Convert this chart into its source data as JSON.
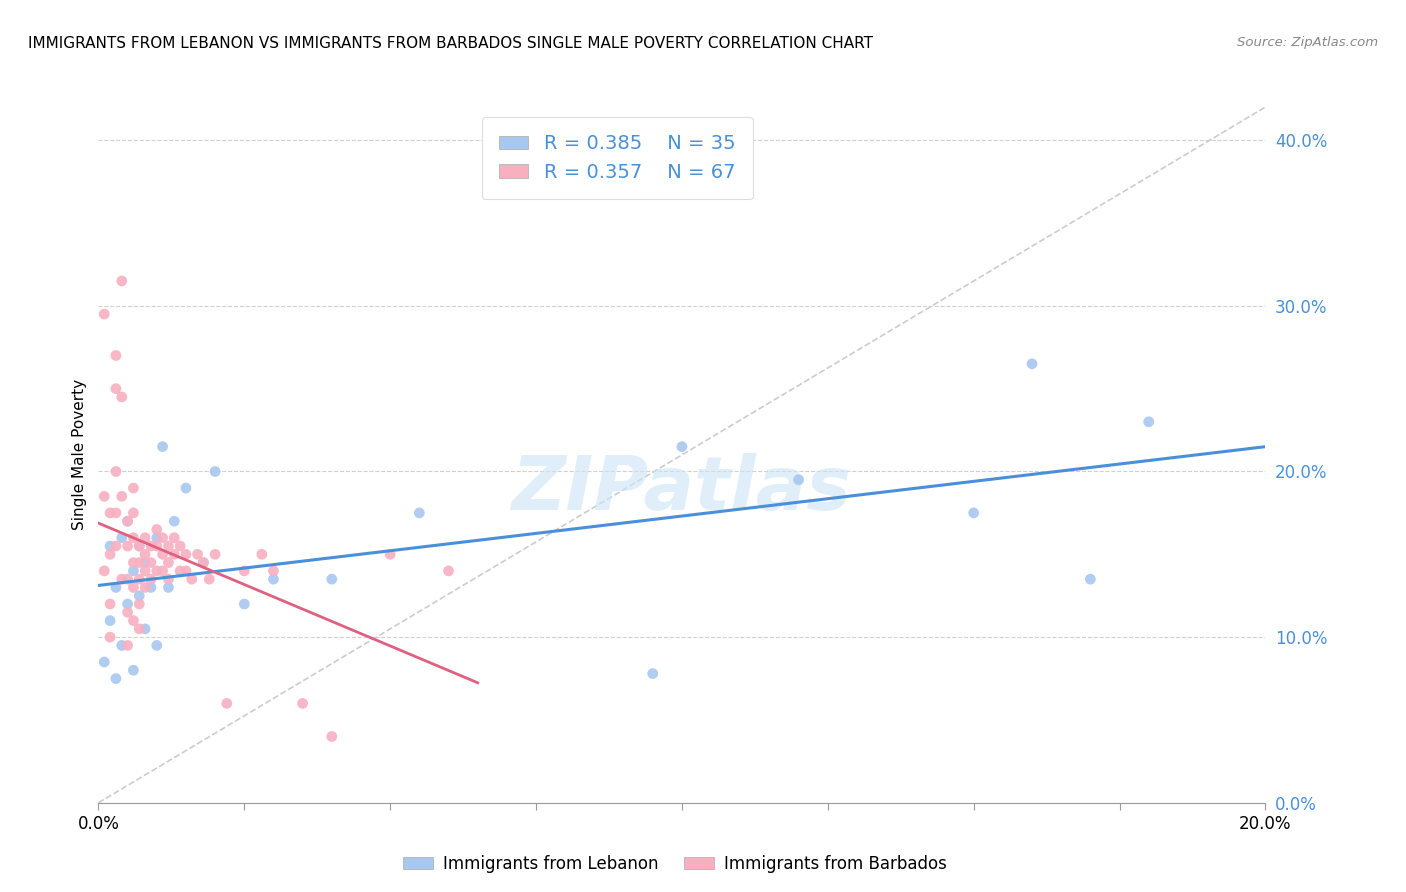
{
  "title": "IMMIGRANTS FROM LEBANON VS IMMIGRANTS FROM BARBADOS SINGLE MALE POVERTY CORRELATION CHART",
  "source": "Source: ZipAtlas.com",
  "ylabel": "Single Male Poverty",
  "xlim": [
    0.0,
    0.2
  ],
  "ylim": [
    0.0,
    0.42
  ],
  "lebanon_R": 0.385,
  "lebanon_N": 35,
  "barbados_R": 0.357,
  "barbados_N": 67,
  "lebanon_color": "#a8c8f0",
  "barbados_color": "#f8b0c0",
  "lebanon_line_color": "#4a90d9",
  "barbados_line_color": "#e06080",
  "diagonal_color": "#cccccc",
  "watermark": "ZIPatlas",
  "legend_leb": "Immigrants from Lebanon",
  "legend_bar": "Immigrants from Barbados",
  "lebanon_x": [
    0.001,
    0.002,
    0.002,
    0.003,
    0.003,
    0.004,
    0.004,
    0.005,
    0.005,
    0.006,
    0.006,
    0.007,
    0.007,
    0.008,
    0.008,
    0.009,
    0.01,
    0.01,
    0.011,
    0.012,
    0.013,
    0.015,
    0.018,
    0.02,
    0.025,
    0.03,
    0.04,
    0.055,
    0.095,
    0.1,
    0.12,
    0.15,
    0.16,
    0.17,
    0.18
  ],
  "lebanon_y": [
    0.085,
    0.11,
    0.155,
    0.075,
    0.13,
    0.095,
    0.16,
    0.12,
    0.17,
    0.14,
    0.08,
    0.125,
    0.155,
    0.145,
    0.105,
    0.13,
    0.095,
    0.16,
    0.215,
    0.13,
    0.17,
    0.19,
    0.145,
    0.2,
    0.12,
    0.135,
    0.135,
    0.175,
    0.078,
    0.215,
    0.195,
    0.175,
    0.265,
    0.135,
    0.23
  ],
  "barbados_x": [
    0.001,
    0.001,
    0.001,
    0.002,
    0.002,
    0.002,
    0.002,
    0.003,
    0.003,
    0.003,
    0.003,
    0.003,
    0.004,
    0.004,
    0.004,
    0.004,
    0.005,
    0.005,
    0.005,
    0.005,
    0.005,
    0.006,
    0.006,
    0.006,
    0.006,
    0.006,
    0.006,
    0.007,
    0.007,
    0.007,
    0.007,
    0.007,
    0.008,
    0.008,
    0.008,
    0.008,
    0.009,
    0.009,
    0.009,
    0.01,
    0.01,
    0.01,
    0.011,
    0.011,
    0.011,
    0.012,
    0.012,
    0.012,
    0.013,
    0.013,
    0.014,
    0.014,
    0.015,
    0.015,
    0.016,
    0.017,
    0.018,
    0.019,
    0.02,
    0.022,
    0.025,
    0.028,
    0.03,
    0.035,
    0.04,
    0.05,
    0.06
  ],
  "barbados_y": [
    0.295,
    0.185,
    0.14,
    0.175,
    0.15,
    0.12,
    0.1,
    0.27,
    0.25,
    0.2,
    0.175,
    0.155,
    0.315,
    0.245,
    0.185,
    0.135,
    0.17,
    0.155,
    0.135,
    0.115,
    0.095,
    0.19,
    0.175,
    0.16,
    0.145,
    0.13,
    0.11,
    0.155,
    0.145,
    0.135,
    0.12,
    0.105,
    0.16,
    0.15,
    0.14,
    0.13,
    0.155,
    0.145,
    0.135,
    0.165,
    0.155,
    0.14,
    0.16,
    0.15,
    0.14,
    0.155,
    0.145,
    0.135,
    0.16,
    0.15,
    0.155,
    0.14,
    0.15,
    0.14,
    0.135,
    0.15,
    0.145,
    0.135,
    0.15,
    0.06,
    0.14,
    0.15,
    0.14,
    0.06,
    0.04,
    0.15,
    0.14
  ],
  "y_ticks": [
    0.0,
    0.1,
    0.2,
    0.3,
    0.4
  ],
  "x_ticks": [
    0.0,
    0.025,
    0.05,
    0.075,
    0.1,
    0.125,
    0.15,
    0.175,
    0.2
  ]
}
